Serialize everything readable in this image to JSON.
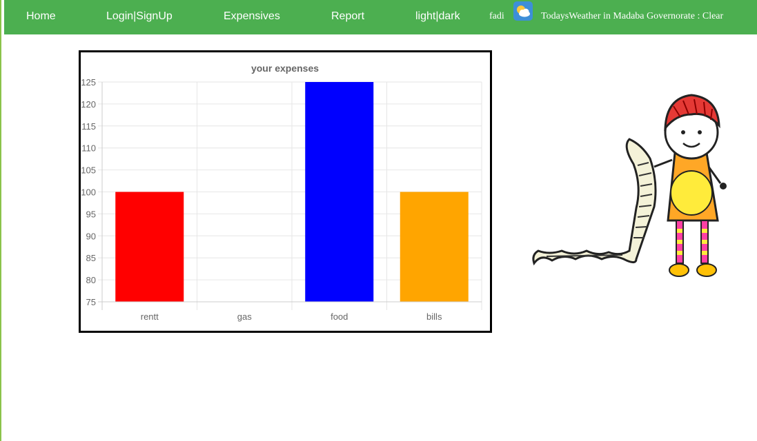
{
  "nav": {
    "home": "Home",
    "login": "Login|SignUp",
    "expenses": "Expensives",
    "report": "Report",
    "theme": "light|dark",
    "user": "fadi",
    "weather": "TodaysWeather in Madaba Governorate : Clear"
  },
  "icons": {
    "weather": "partly-cloudy-icon"
  },
  "colors": {
    "navbar": "#4caf50",
    "accent_border": "#8bc34a"
  },
  "chart_data": {
    "type": "bar",
    "title": "your expenses",
    "categories": [
      "rentt",
      "gas",
      "food",
      "bills"
    ],
    "values": [
      100,
      75,
      125,
      100
    ],
    "colors": [
      "#ff0000",
      "#ffffff",
      "#0000ff",
      "#ffa500"
    ],
    "ylim": [
      75,
      125
    ],
    "yticks": [
      75,
      80,
      85,
      90,
      95,
      100,
      105,
      110,
      115,
      120,
      125
    ],
    "grid": true,
    "xlabel": "",
    "ylabel": ""
  }
}
